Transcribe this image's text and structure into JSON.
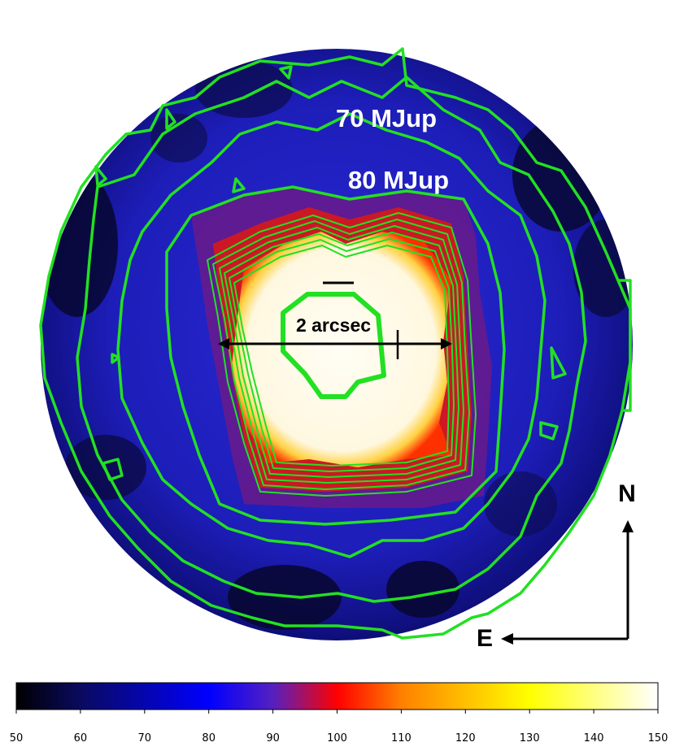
{
  "annotations": {
    "contour_70": "70 MJup",
    "contour_80": "80 MJup",
    "scale_bar": "2 arcsec",
    "north": "N",
    "east": "E"
  },
  "colorbar": {
    "ticks": [
      "50",
      "60",
      "70",
      "80",
      "90",
      "100",
      "110",
      "120",
      "130",
      "140",
      "150"
    ],
    "min": 50,
    "max": 150,
    "colors": [
      "#000000",
      "#0000ff",
      "#ff0000",
      "#ffff00",
      "#ffffff"
    ]
  },
  "colors": {
    "contour": "#22e022",
    "background_field": "#1a1aa8",
    "core": "#fffdf0"
  }
}
